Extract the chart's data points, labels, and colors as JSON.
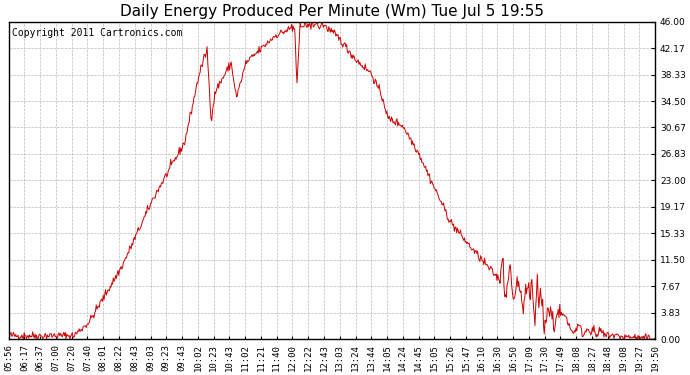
{
  "title": "Daily Energy Produced Per Minute (Wm) Tue Jul 5 19:55",
  "copyright": "Copyright 2011 Cartronics.com",
  "line_color": "#cc0000",
  "bg_color": "#ffffff",
  "grid_color": "#bbbbbb",
  "yticks": [
    0.0,
    3.83,
    7.67,
    11.5,
    15.33,
    19.17,
    23.0,
    26.83,
    30.67,
    34.5,
    38.33,
    42.17,
    46.0
  ],
  "ymin": 0.0,
  "ymax": 46.0,
  "xtick_labels": [
    "05:56",
    "06:17",
    "06:37",
    "07:00",
    "07:20",
    "07:40",
    "08:01",
    "08:22",
    "08:43",
    "09:03",
    "09:23",
    "09:43",
    "10:02",
    "10:23",
    "10:43",
    "11:02",
    "11:21",
    "11:40",
    "12:00",
    "12:22",
    "12:43",
    "13:03",
    "13:24",
    "13:44",
    "14:05",
    "14:24",
    "14:45",
    "15:05",
    "15:26",
    "15:47",
    "16:10",
    "16:30",
    "16:50",
    "17:09",
    "17:30",
    "17:49",
    "18:08",
    "18:27",
    "18:48",
    "19:08",
    "19:27",
    "19:50"
  ],
  "figwidth": 6.9,
  "figheight": 3.75,
  "title_fontsize": 11,
  "copyright_fontsize": 7,
  "tick_fontsize": 6.5,
  "line_width": 0.7
}
